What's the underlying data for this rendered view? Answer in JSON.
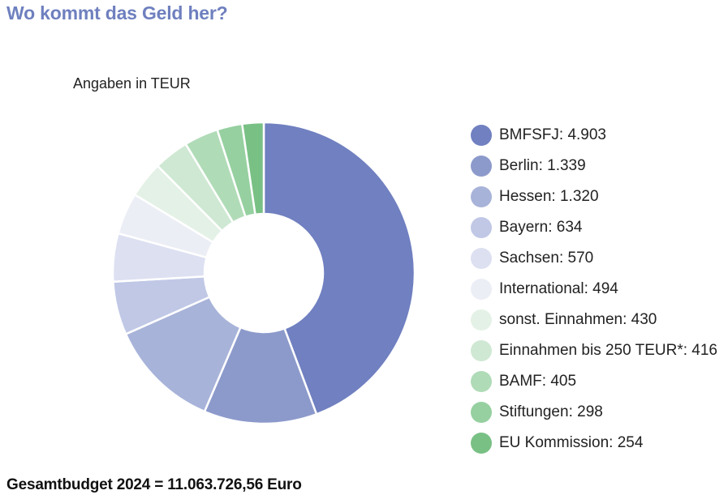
{
  "header": {
    "title": "Wo kommt das Geld her?"
  },
  "chart_data": {
    "type": "pie",
    "title": "",
    "subtitle": "Angaben in TEUR",
    "legend_position": "right",
    "donut": true,
    "categories": [
      "BMFSFJ",
      "Berlin",
      "Hessen",
      "Bayern",
      "Sachsen",
      "International",
      "sonst. Einnahmen",
      "Einnahmen bis 250 TEUR*",
      "BAMF",
      "Stiftungen",
      "EU Kommission"
    ],
    "values": [
      4903,
      1339,
      1320,
      634,
      570,
      494,
      430,
      416,
      405,
      298,
      254
    ],
    "value_labels": [
      "4.903",
      "1.339",
      "1.320",
      "634",
      "570",
      "494",
      "430",
      "416",
      "405",
      "298",
      "254"
    ],
    "colors": [
      "#7080c0",
      "#8c9acb",
      "#a8b3d9",
      "#c0c8e6",
      "#dce0f1",
      "#eceef6",
      "#e4f1e6",
      "#cfe8d3",
      "#b0dbb7",
      "#96d0a0",
      "#79c085"
    ]
  },
  "footer": {
    "total": "Gesamtbudget 2024 = 11.063.726,56 Euro"
  }
}
